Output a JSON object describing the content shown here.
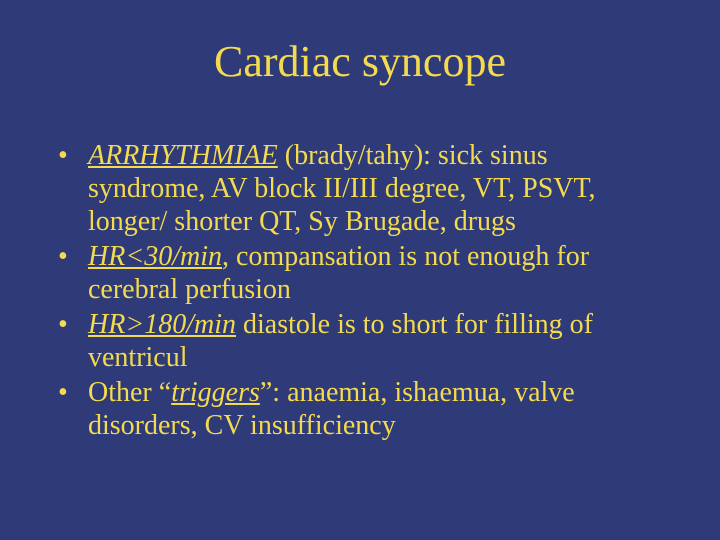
{
  "colors": {
    "background": "#2f3a78",
    "title": "#f3da4f",
    "body": "#f3da4f"
  },
  "title": "Cardiac syncope",
  "bullets": [
    {
      "lead": "ARRHYTHMIAE",
      "lead_style": "ul-it",
      "tail": " (brady/tahy): sick sinus syndrome, AV block II/III degree, VT, PSVT, longer/ shorter QT, Sy Brugade, drugs"
    },
    {
      "lead": "HR<30/min",
      "lead_style": "ul-it",
      "tail": ", compansation is not enough for cerebral perfusion"
    },
    {
      "lead": "HR>180/min",
      "lead_style": "ul-it",
      "tail": " diastole is to short for filling of ventricul"
    },
    {
      "pre": "Other “",
      "lead": "triggers",
      "lead_style": "ul-it",
      "tail": "”: anaemia, ishaemua, valve disorders, CV insufficiency"
    }
  ]
}
